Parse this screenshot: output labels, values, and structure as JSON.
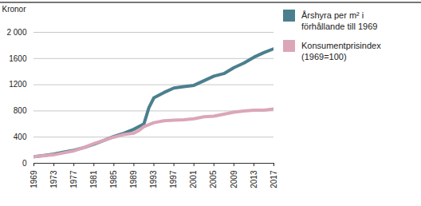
{
  "chart_data": {
    "type": "line",
    "x": [
      1969,
      1971,
      1973,
      1975,
      1977,
      1979,
      1981,
      1983,
      1985,
      1987,
      1989,
      1990,
      1991,
      1992,
      1993,
      1995,
      1997,
      1999,
      2001,
      2003,
      2005,
      2007,
      2009,
      2011,
      2013,
      2015,
      2017
    ],
    "series": [
      {
        "name": "Årshyra per m² i förhållande till 1969",
        "color": "#4b7f8e",
        "values": [
          100,
          120,
          140,
          170,
          200,
          240,
          290,
          350,
          410,
          460,
          520,
          560,
          600,
          850,
          1000,
          1080,
          1150,
          1170,
          1190,
          1260,
          1330,
          1370,
          1460,
          1530,
          1620,
          1690,
          1750
        ]
      },
      {
        "name": "Konsumentprisindex (1969=100)",
        "color": "#dba6b8",
        "values": [
          100,
          115,
          130,
          160,
          190,
          240,
          300,
          350,
          400,
          440,
          460,
          500,
          560,
          590,
          620,
          650,
          660,
          665,
          680,
          710,
          720,
          750,
          780,
          800,
          810,
          810,
          830
        ]
      }
    ],
    "y_label": "Kronor",
    "xlim": [
      1969,
      2017
    ],
    "xticks": [
      1969,
      1973,
      1977,
      1981,
      1985,
      1989,
      1993,
      1997,
      2001,
      2005,
      2009,
      2013,
      2017
    ],
    "ylim": [
      0,
      2000
    ],
    "yticks": [
      0,
      400,
      800,
      1200,
      1600,
      {
        "value": 2000,
        "label": "2 000"
      }
    ],
    "grid": true,
    "legend": "right"
  }
}
